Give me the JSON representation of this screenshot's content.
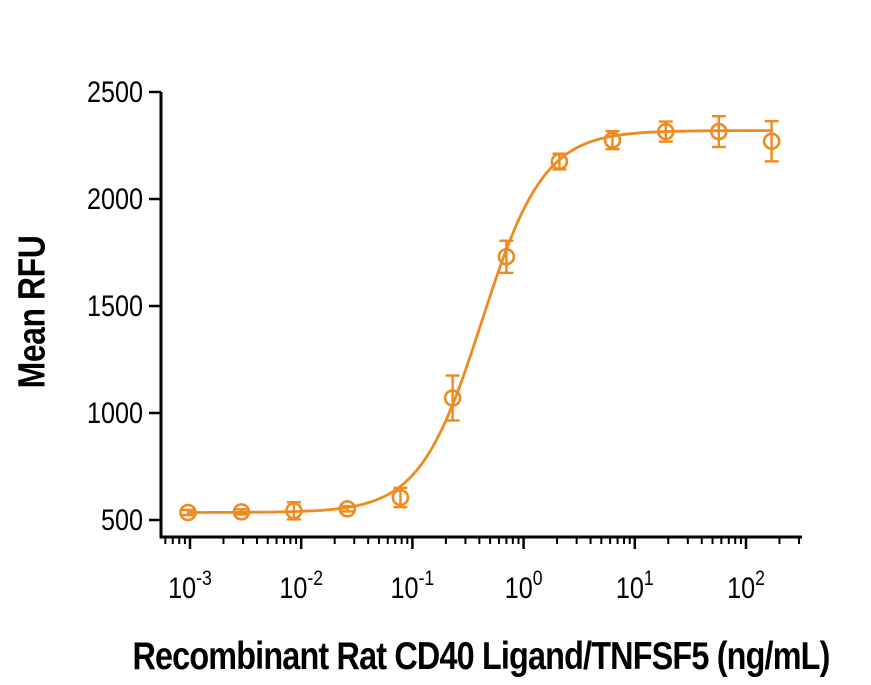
{
  "figure": {
    "background_color": "#ffffff",
    "series_color": "#EE8A1E",
    "axis_color": "#000000",
    "text_color": "#000000"
  },
  "chart_data": {
    "type": "scatter",
    "subtype": "dose-response-curve-with-error-bars",
    "title": "",
    "xlabel": "Recombinant Rat CD40 Ligand/TNFSF5 (ng/mL)",
    "ylabel": "Mean RFU",
    "x_scale": "log10",
    "x_unit": "ng/mL",
    "grid": false,
    "legend": false,
    "marker": "open-circle",
    "points": [
      {
        "x": 0.00096,
        "y": 535,
        "yerr": 12
      },
      {
        "x": 0.0029,
        "y": 538,
        "yerr": 12
      },
      {
        "x": 0.0086,
        "y": 543,
        "yerr": 40
      },
      {
        "x": 0.026,
        "y": 552,
        "yerr": 12
      },
      {
        "x": 0.078,
        "y": 605,
        "yerr": 45
      },
      {
        "x": 0.23,
        "y": 1070,
        "yerr": 105
      },
      {
        "x": 0.7,
        "y": 1730,
        "yerr": 75
      },
      {
        "x": 2.1,
        "y": 2175,
        "yerr": 37
      },
      {
        "x": 6.3,
        "y": 2275,
        "yerr": 42
      },
      {
        "x": 19,
        "y": 2315,
        "yerr": 47
      },
      {
        "x": 57,
        "y": 2315,
        "yerr": 72
      },
      {
        "x": 170,
        "y": 2270,
        "yerr": 94
      }
    ],
    "fit_curve": {
      "model": "4PL",
      "bottom": 535,
      "top": 2320,
      "ec50": 0.42,
      "hill": 1.55
    },
    "x_tick_exponents": [
      -3,
      -2,
      -1,
      0,
      1,
      2
    ],
    "y_ticks": [
      500,
      1000,
      1500,
      2000,
      2500
    ],
    "ylim": [
      420,
      2500
    ],
    "xlim_log10": [
      -3.26,
      2.5
    ]
  }
}
